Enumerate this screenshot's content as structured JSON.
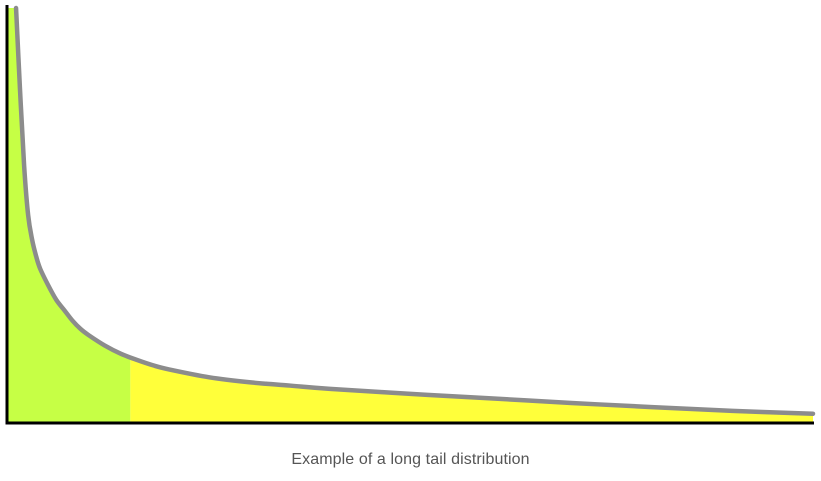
{
  "caption": "Example of a long tail distribution",
  "colors": {
    "head_fill": "#c6ff45",
    "tail_fill": "#ffff3a",
    "curve": "#8c8c8c",
    "axis": "#000000",
    "caption_text": "#555555"
  },
  "chart_data": {
    "type": "area",
    "title": "",
    "xlabel": "",
    "ylabel": "",
    "grid": false,
    "legend": "none",
    "xlim": [
      0,
      100
    ],
    "ylim": [
      0,
      100
    ],
    "head_cutoff_x": 15.2,
    "x": [
      1.0,
      1.5,
      2.0,
      2.5,
      3.0,
      3.5,
      4.0,
      5.0,
      6.0,
      7.0,
      8.0,
      9.0,
      10.0,
      12.0,
      14.0,
      16.0,
      18.0,
      20.0,
      25.0,
      30.0,
      35.0,
      40.0,
      50.0,
      60.0,
      70.0,
      80.0,
      90.0,
      100.0
    ],
    "y": [
      100.0,
      80.0,
      62.0,
      50.0,
      44.0,
      40.0,
      37.0,
      33.0,
      29.5,
      27.0,
      24.5,
      22.5,
      21.0,
      18.5,
      16.5,
      15.0,
      13.7,
      12.7,
      10.8,
      9.6,
      8.8,
      8.0,
      6.8,
      5.7,
      4.6,
      3.6,
      2.7,
      2.0
    ]
  }
}
